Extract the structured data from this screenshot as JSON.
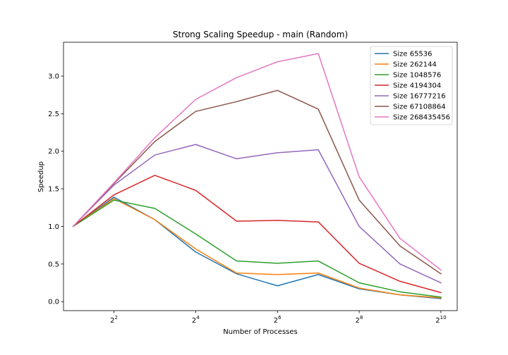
{
  "chart_data": {
    "type": "line",
    "title": "Strong Scaling Speedup - main (Random)",
    "xlabel": "Number of Processes",
    "ylabel": "Speedup",
    "x_scale": "log2",
    "x": [
      2,
      4,
      8,
      16,
      32,
      64,
      128,
      256,
      512,
      1024
    ],
    "xlim": [
      1.7,
      1350
    ],
    "ylim": [
      -0.12,
      3.45
    ],
    "x_ticks": [
      {
        "value": 4,
        "base": "2",
        "exp": "2"
      },
      {
        "value": 16,
        "base": "2",
        "exp": "4"
      },
      {
        "value": 64,
        "base": "2",
        "exp": "6"
      },
      {
        "value": 256,
        "base": "2",
        "exp": "8"
      },
      {
        "value": 1024,
        "base": "2",
        "exp": "10"
      }
    ],
    "y_ticks": [
      "0.0",
      "0.5",
      "1.0",
      "1.5",
      "2.0",
      "2.5",
      "3.0"
    ],
    "legend_position": "top-right",
    "grid": false,
    "series": [
      {
        "name": "Size 65536",
        "color": "#1f77b4",
        "values": [
          1.0,
          1.39,
          1.09,
          0.66,
          0.37,
          0.21,
          0.36,
          0.17,
          0.09,
          0.04
        ]
      },
      {
        "name": "Size 262144",
        "color": "#ff7f0e",
        "values": [
          1.0,
          1.37,
          1.09,
          0.7,
          0.38,
          0.36,
          0.38,
          0.18,
          0.09,
          0.05
        ]
      },
      {
        "name": "Size 1048576",
        "color": "#2ca02c",
        "values": [
          1.0,
          1.35,
          1.24,
          0.9,
          0.54,
          0.51,
          0.54,
          0.25,
          0.13,
          0.06
        ]
      },
      {
        "name": "Size 4194304",
        "color": "#d62728",
        "values": [
          1.0,
          1.42,
          1.68,
          1.48,
          1.07,
          1.08,
          1.06,
          0.51,
          0.27,
          0.12
        ]
      },
      {
        "name": "Size 16777216",
        "color": "#9467bd",
        "values": [
          1.0,
          1.55,
          1.95,
          2.09,
          1.9,
          1.98,
          2.02,
          1.0,
          0.5,
          0.25
        ]
      },
      {
        "name": "Size 67108864",
        "color": "#8c564b",
        "values": [
          1.0,
          1.57,
          2.13,
          2.53,
          2.66,
          2.81,
          2.56,
          1.35,
          0.74,
          0.37
        ]
      },
      {
        "name": "Size 268435456",
        "color": "#e377c2",
        "values": [
          1.0,
          1.58,
          2.18,
          2.69,
          2.98,
          3.19,
          3.3,
          1.66,
          0.84,
          0.42
        ]
      }
    ]
  }
}
